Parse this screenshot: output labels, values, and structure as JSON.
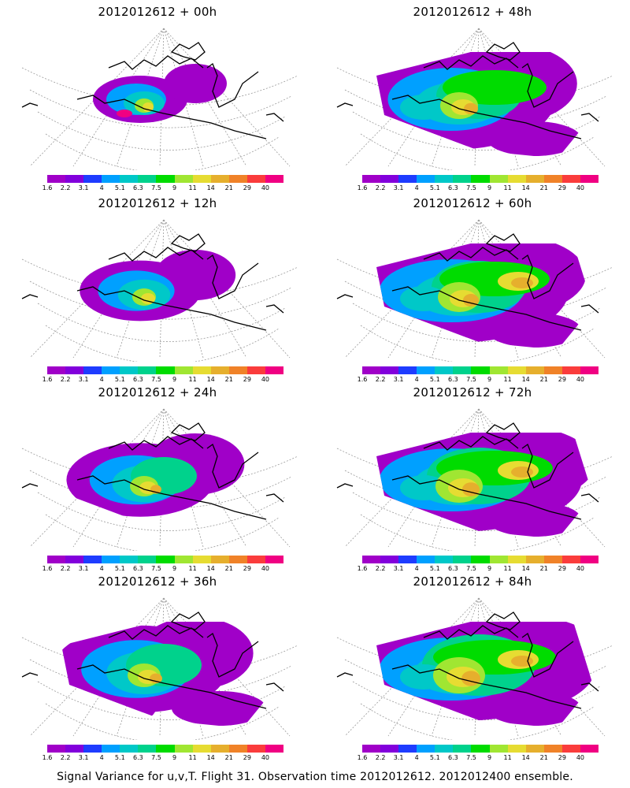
{
  "panels": [
    {
      "title": "2012012612 + 00h",
      "level": 0
    },
    {
      "title": "2012012612 + 48h",
      "level": 4
    },
    {
      "title": "2012012612 + 12h",
      "level": 1
    },
    {
      "title": "2012012612 + 60h",
      "level": 5
    },
    {
      "title": "2012012612 + 24h",
      "level": 2
    },
    {
      "title": "2012012612 + 72h",
      "level": 6
    },
    {
      "title": "2012012612 + 36h",
      "level": 3
    },
    {
      "title": "2012012612 + 84h",
      "level": 7
    }
  ],
  "colorbar": {
    "colors": [
      "#a000c8",
      "#8200dc",
      "#1e3cff",
      "#00a0ff",
      "#00c8c8",
      "#00d28c",
      "#00dc00",
      "#a0e632",
      "#e6dc32",
      "#e6af2d",
      "#f08228",
      "#fa3c3c",
      "#f00082"
    ],
    "labels": [
      "1.6",
      "2.2",
      "3.1",
      "4",
      "5.1",
      "6.3",
      "7.5",
      "9",
      "11",
      "14",
      "21",
      "29",
      "40"
    ]
  },
  "caption": "Signal Variance for u,v,T. Flight 31. Observation time 2012012612. 2012012400 ensemble."
}
